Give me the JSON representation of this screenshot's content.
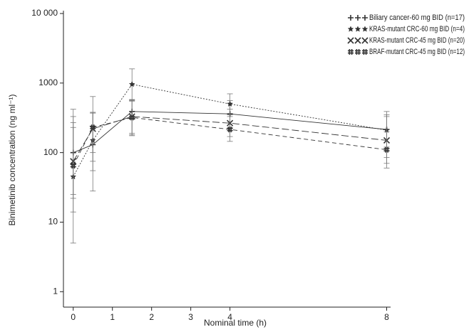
{
  "chart_data": {
    "type": "line",
    "x_label": "Nominal time (h)",
    "y_label": "Binimetinib concentration (ng ml⁻¹)",
    "log_y": true,
    "xlim": [
      -0.25,
      8.1
    ],
    "xticks": [
      0,
      1,
      2,
      3,
      4,
      8
    ],
    "ylim": [
      0.6,
      10000
    ],
    "yticks": [
      1,
      10,
      100,
      1000,
      {
        "value": 10000,
        "label": "10 000"
      }
    ],
    "legend": "top-right",
    "x": [
      0,
      0.5,
      1.5,
      4,
      8
    ],
    "series": [
      {
        "name": "Biliary cancer-60 mg BID (n=17)",
        "color": "#333333",
        "marker": "plus",
        "dash": "solid",
        "values": [
          100,
          130,
          390,
          360,
          215
        ],
        "lower": [
          25,
          55,
          180,
          230,
          120
        ],
        "upper": [
          420,
          370,
          580,
          560,
          390
        ]
      },
      {
        "name": "KRAS-mutant CRC-60 mg BID (n=4)",
        "color": "#333333",
        "marker": "star",
        "dash": "dotted",
        "values": [
          45,
          150,
          960,
          500,
          210
        ],
        "lower": [
          5,
          28,
          550,
          350,
          85
        ],
        "upper": [
          330,
          640,
          1600,
          700,
          350
        ]
      },
      {
        "name": "KRAS-mutant CRC-45 mg BID (n=20)",
        "color": "#333333",
        "marker": "x",
        "dash": "long-dash",
        "values": [
          75,
          220,
          330,
          265,
          150
        ],
        "lower": [
          14,
          75,
          190,
          170,
          70
        ],
        "upper": [
          270,
          380,
          570,
          420,
          330
        ]
      },
      {
        "name": "BRAF-mutant CRC-45 mg BID (n=12)",
        "color": "#333333",
        "marker": "hash",
        "dash": "dash",
        "values": [
          65,
          230,
          320,
          215,
          110
        ],
        "lower": [
          22,
          100,
          175,
          145,
          60
        ],
        "upper": [
          230,
          370,
          560,
          330,
          200
        ]
      }
    ]
  }
}
